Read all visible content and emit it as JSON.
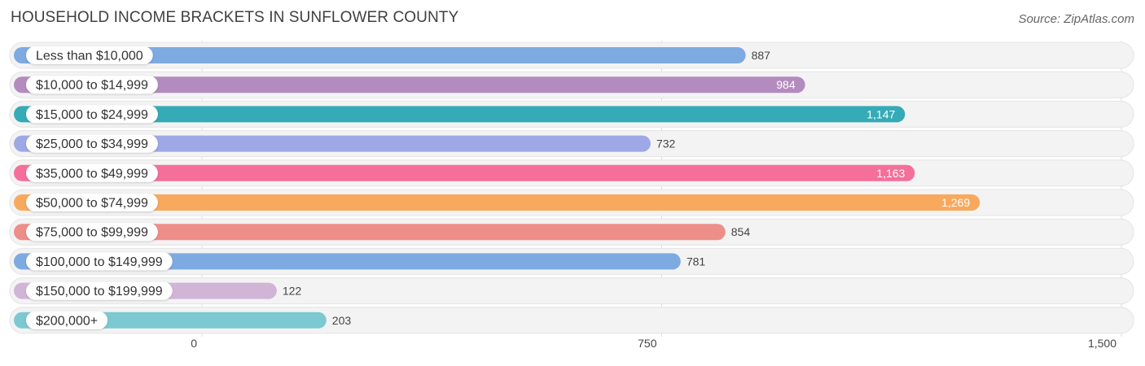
{
  "chart_data": {
    "type": "bar",
    "orientation": "horizontal",
    "title": "HOUSEHOLD INCOME BRACKETS IN SUNFLOWER COUNTY",
    "source": "Source: ZipAtlas.com",
    "categories": [
      "Less than $10,000",
      "$10,000 to $14,999",
      "$15,000 to $24,999",
      "$25,000 to $34,999",
      "$35,000 to $49,999",
      "$50,000 to $74,999",
      "$75,000 to $99,999",
      "$100,000 to $149,999",
      "$150,000 to $199,999",
      "$200,000+"
    ],
    "values": [
      887,
      984,
      1147,
      732,
      1163,
      1269,
      854,
      781,
      122,
      203
    ],
    "value_labels": [
      "887",
      "984",
      "1,147",
      "732",
      "1,163",
      "1,269",
      "854",
      "781",
      "122",
      "203"
    ],
    "colors": [
      "#7eaae2",
      "#b48bbe",
      "#35abb7",
      "#9fa8e6",
      "#f46f9a",
      "#f9a95d",
      "#ee8e89",
      "#7eaae2",
      "#d1b5d6",
      "#7cc9d1"
    ],
    "value_label_inside": [
      false,
      true,
      true,
      false,
      true,
      true,
      false,
      false,
      false,
      false
    ],
    "xlim": [
      0,
      1500
    ],
    "xticks": [
      0,
      750,
      1500
    ],
    "xtick_labels": [
      "0",
      "750",
      "1,500"
    ],
    "grid": true,
    "xlabel": "",
    "ylabel": ""
  }
}
